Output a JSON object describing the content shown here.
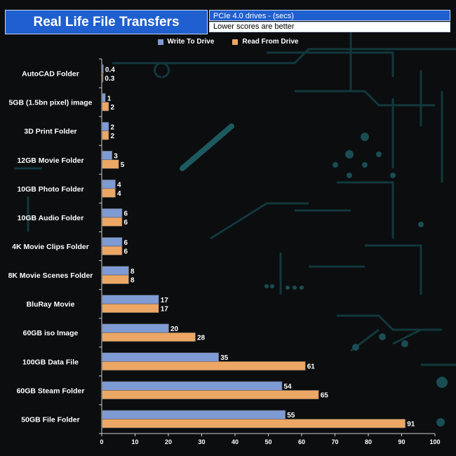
{
  "header": {
    "title": "Real Life File Transfers",
    "subtitle": "PCIe 4.0 drives - (secs)",
    "note": "Lower scores are better"
  },
  "colors": {
    "write": "#7f9bd4",
    "read": "#eca764",
    "axis": "#cfcfcf",
    "text": "#ffffff",
    "circuit": "#12383d"
  },
  "chart_data": {
    "type": "bar",
    "orientation": "horizontal",
    "title": "Real Life File Transfers",
    "subtitle": "PCIe 4.0 drives - (secs)",
    "note": "Lower scores are better",
    "categories": [
      "AutoCAD Folder",
      "5GB (1.5bn pixel) image",
      "3D Print Folder",
      "12GB Movie Folder",
      "10GB Photo Folder",
      "10GB Audio Folder",
      "4K Movie Clips Folder",
      "8K Movie Scenes Folder",
      "BluRay Movie",
      "60GB iso Image",
      "100GB Data File",
      "60GB Steam Folder",
      "50GB File Folder"
    ],
    "series": [
      {
        "name": "Write To  Drive",
        "values": [
          0.4,
          1,
          2,
          3,
          4,
          6,
          6,
          8,
          17,
          20,
          35,
          54,
          55
        ]
      },
      {
        "name": "Read From  Drive",
        "values": [
          0.3,
          2,
          2,
          5,
          4,
          6,
          6,
          8,
          17,
          28,
          61,
          65,
          91
        ]
      }
    ],
    "xlim": [
      0,
      100
    ],
    "xticks": [
      0,
      10,
      20,
      30,
      40,
      50,
      60,
      70,
      80,
      90,
      100
    ],
    "legend_position": "top-center",
    "grid": false
  }
}
